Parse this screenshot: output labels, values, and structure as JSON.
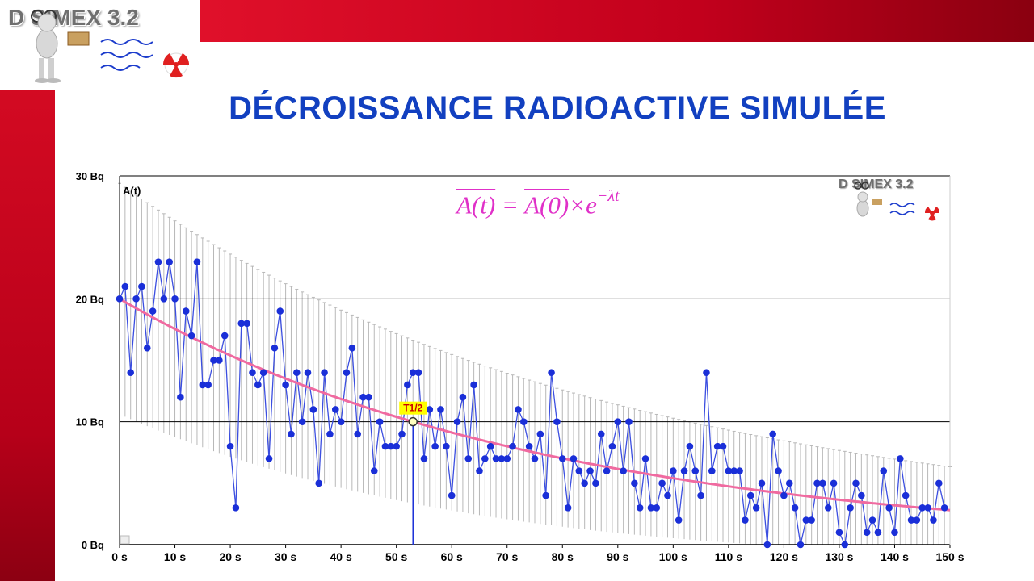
{
  "app": {
    "logo_text": "D   SIMEX 3.2"
  },
  "page": {
    "title": "DÉCROISSANCE RADIOACTIVE SIMULÉE"
  },
  "formula": {
    "text_left": "A(t)",
    "eq": " = ",
    "text_mid": "A(0)",
    "times": "×e",
    "exp": "−λt"
  },
  "chart_data": {
    "type": "scatter",
    "ylabel": "A(t)",
    "xlim": [
      0,
      150
    ],
    "ylim": [
      0,
      30
    ],
    "x_ticks": [
      "0 s",
      "10 s",
      "20 s",
      "30 s",
      "40 s",
      "50 s",
      "60 s",
      "70 s",
      "80 s",
      "90 s",
      "100 s",
      "110 s",
      "120 s",
      "130 s",
      "140 s",
      "150 s"
    ],
    "y_ticks": [
      "0 Bq",
      "10 Bq",
      "20 Bq",
      "30 Bq"
    ],
    "grid": "horizontal at 10, 20, 30",
    "half_life_label": "T1/2",
    "half_life_x": 53,
    "half_life_y": 10,
    "initial_activity": 20,
    "colors": {
      "points": "#1a2fd8",
      "line": "#3b4ee0",
      "fit": "#f06aa0",
      "bars": "#b8b8b8",
      "marker": "#ffff00"
    },
    "series": [
      {
        "values": [
          20,
          21,
          14,
          20,
          21,
          16,
          19,
          23,
          20,
          23,
          20,
          12,
          19,
          17,
          23,
          13,
          13,
          15,
          15,
          17,
          8,
          3,
          18,
          18,
          14,
          13,
          14,
          7,
          16,
          19,
          13,
          9,
          14,
          10,
          14,
          11,
          5,
          14,
          9,
          11,
          10,
          14,
          16,
          9,
          12,
          12,
          6,
          10,
          8,
          8,
          8,
          9,
          13,
          14,
          14,
          7,
          11,
          8,
          11,
          8,
          4,
          10,
          12,
          7,
          13,
          6,
          7,
          8,
          7,
          7,
          7,
          8,
          11,
          10,
          8,
          7,
          9,
          4,
          14,
          10,
          7,
          3,
          7,
          6,
          5,
          6,
          5,
          9,
          6,
          8,
          10,
          6,
          10,
          5,
          3,
          7,
          3,
          3,
          5,
          4,
          6,
          2,
          6,
          8,
          6,
          4,
          14,
          6,
          8,
          8,
          6,
          6,
          6,
          2,
          4,
          3,
          5,
          0,
          9,
          6,
          4,
          5,
          3,
          0,
          2,
          2,
          5,
          5,
          3,
          5,
          1,
          0,
          3,
          5,
          4,
          1,
          2,
          1,
          6,
          3,
          1,
          7,
          4,
          2,
          2,
          3,
          3,
          2,
          5,
          3
        ]
      }
    ]
  }
}
